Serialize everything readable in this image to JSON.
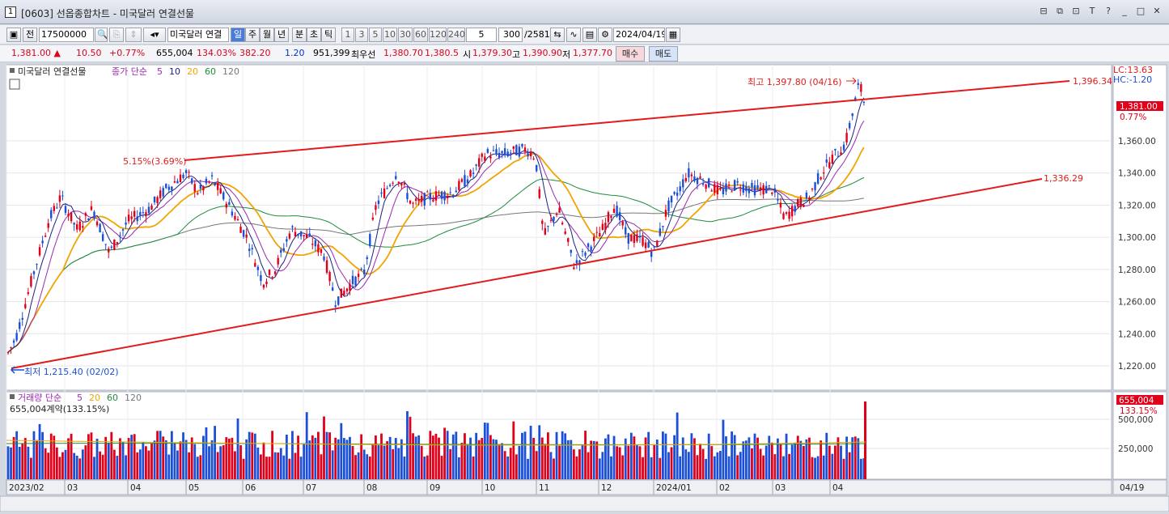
{
  "window": {
    "title": "[0603] 선옵종합차트 - 미국달러 연결선물",
    "num": "1",
    "controls": [
      "⊟",
      "⧉",
      "⊡",
      "T",
      "?",
      "_",
      "□",
      "✕"
    ]
  },
  "toolbar": {
    "mode": "전",
    "code": "17500000",
    "name": "미국달러 연결",
    "periods": [
      "일",
      "주",
      "월",
      "년",
      "분",
      "초",
      "틱"
    ],
    "intervals": [
      "1",
      "3",
      "5",
      "10",
      "30",
      "60",
      "120",
      "240"
    ],
    "interval_value": "5",
    "count": "300",
    "total": "/2581",
    "date": "2024/04/19"
  },
  "quote": {
    "price": "1,381.00",
    "change": "10.50",
    "rate": "+0.77%",
    "volume": "655,004",
    "vol_rate": "134.03%",
    "v3": "382.20",
    "v4": "1.20",
    "v5": "951,399",
    "best_label": "최우선",
    "best_ask": "1,380.70",
    "best_bid": "1,380.5",
    "open_label": "시",
    "open": "1,379.30",
    "high_label": "고",
    "high": "1,390.90",
    "low_label": "저",
    "low": "1,377.70",
    "sell": "매수",
    "buy": "매도"
  },
  "legend": {
    "name": "미국달러 연결선물",
    "label": "종가 단순",
    "ma": [
      "5",
      "10",
      "20",
      "60",
      "120"
    ]
  },
  "vol_legend": {
    "label": "거래량 단순",
    "ma": [
      "5",
      "20",
      "60",
      "120"
    ],
    "info": "655,004계약(133.15%)"
  },
  "annotations": {
    "high": "최고 1,397.80 (04/16)",
    "low": "최저 1,215.40 (02/02)",
    "pct": "5.15%(3.69%)",
    "upper_line": "1,396.34",
    "lower_line": "1,336.29",
    "lc": "LC:13.63",
    "hc": "HC:-1.20",
    "last_price": "1,381.00",
    "last_pct": "0.77%",
    "vol_last": "655,004",
    "vol_pct": "133.15%"
  },
  "price_axis": [
    "1,360.00",
    "1,340.00",
    "1,320.00",
    "1,300.00",
    "1,280.00",
    "1,260.00",
    "1,240.00",
    "1,220.00"
  ],
  "vol_axis": [
    "500,000",
    "250,000"
  ],
  "date_axis": [
    "2023/02",
    "03",
    "04",
    "05",
    "06",
    "07",
    "08",
    "09",
    "10",
    "11",
    "12",
    "2024/01",
    "02",
    "03",
    "04"
  ],
  "date_axis_end": "04/19",
  "colors": {
    "up": "#e0001a",
    "down": "#1a4fd6",
    "trend": "#e21b1b",
    "ma5": "#1a237e",
    "ma10": "#9c27b0",
    "ma20": "#f0a500",
    "ma60": "#1e8c3a",
    "ma120": "#777777"
  },
  "chart_data": {
    "type": "candlestick",
    "title": "미국달러 연결선물",
    "ylim": [
      1210,
      1400
    ],
    "x_start": "2023/02",
    "x_end": "2024/04/19",
    "high": {
      "value": 1397.8,
      "date": "04/16"
    },
    "low": {
      "value": 1215.4,
      "date": "02/02"
    },
    "last": 1381.0
  }
}
